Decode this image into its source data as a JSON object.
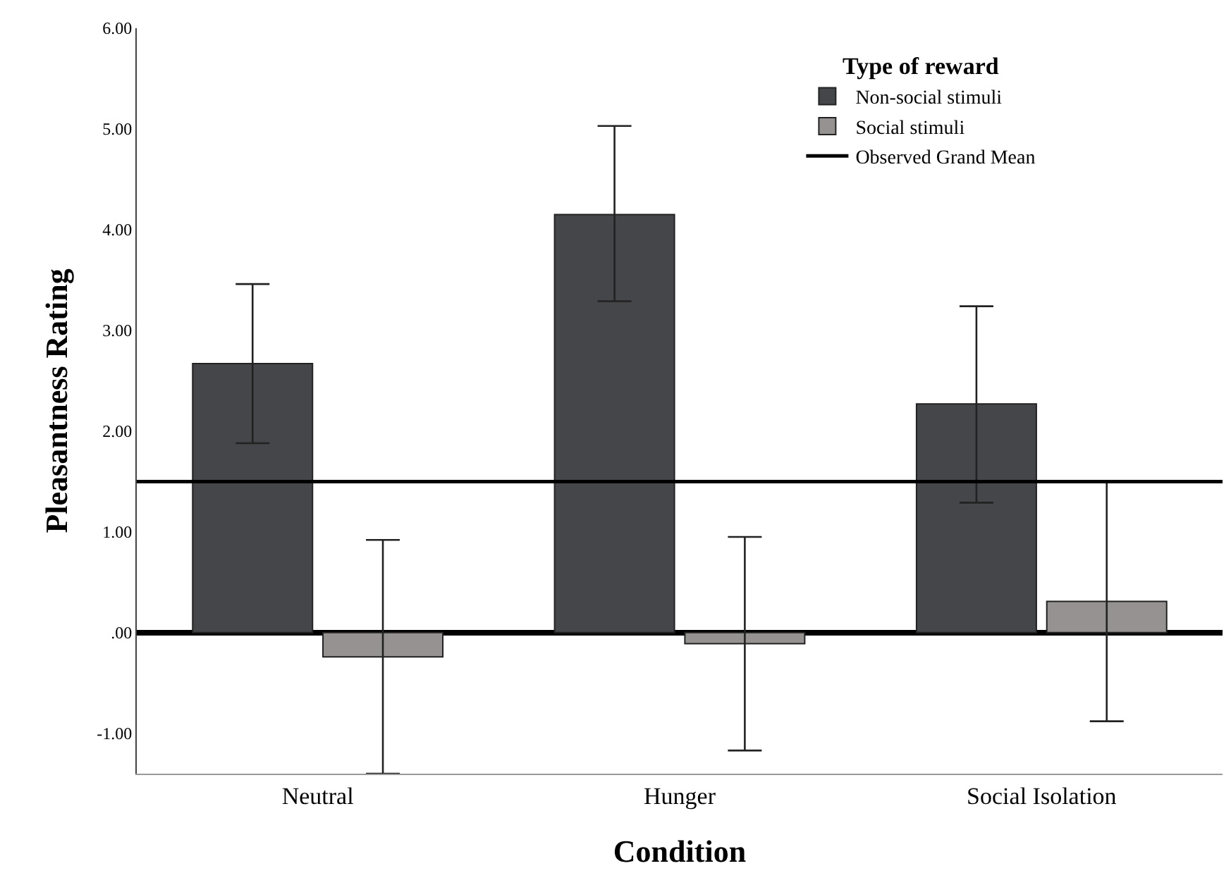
{
  "chart_data": {
    "type": "bar",
    "xlabel": "Condition",
    "ylabel": "Pleasantness Rating",
    "legend_title": "Type of reward",
    "categories": [
      "Neutral",
      "Hunger",
      "Social Isolation"
    ],
    "series": [
      {
        "name": "Non-social stimuli",
        "color": "#454649",
        "values": [
          2.67,
          4.15,
          2.27
        ],
        "errors": [
          [
            1.88,
            3.46
          ],
          [
            3.29,
            5.03
          ],
          [
            1.29,
            3.24
          ]
        ]
      },
      {
        "name": "Social stimuli",
        "color": "#959291",
        "values": [
          -0.24,
          -0.11,
          0.31
        ],
        "errors": [
          [
            -1.4,
            0.92
          ],
          [
            -1.17,
            0.95
          ],
          [
            -0.88,
            1.5
          ]
        ]
      }
    ],
    "ylim": [
      -1.4,
      6
    ],
    "yticks": [
      {
        "value": -1,
        "label": "-1.00"
      },
      {
        "value": 0,
        "label": ".00"
      },
      {
        "value": 1,
        "label": "1.00"
      },
      {
        "value": 2,
        "label": "2.00"
      },
      {
        "value": 3,
        "label": "3.00"
      },
      {
        "value": 4,
        "label": "4.00"
      },
      {
        "value": 5,
        "label": "5.00"
      },
      {
        "value": 6,
        "label": "6.00"
      }
    ],
    "ref_lines": [
      {
        "axis": "y",
        "value": 1.5,
        "label": "Observed Grand Mean",
        "color": "#000000"
      }
    ],
    "legend": "top right"
  }
}
